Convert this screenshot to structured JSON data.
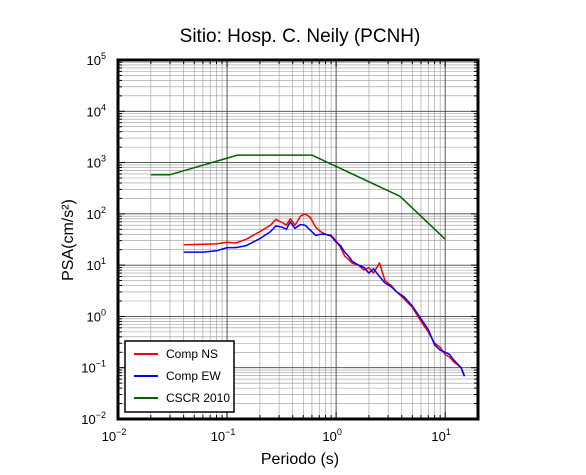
{
  "chart_data": {
    "type": "line",
    "title": "Sitio: Hosp. C. Neily (PCNH)",
    "xlabel": "Periodo (s)",
    "ylabel": "PSA(cm/s²)",
    "x_scale": "log",
    "y_scale": "log",
    "xlim": [
      0.01,
      20
    ],
    "ylim": [
      0.01,
      100000
    ],
    "grid": true,
    "legend_position": "bottom-left",
    "x_ticks": [
      {
        "base": "10",
        "exp": "−2",
        "value": 0.01
      },
      {
        "base": "10",
        "exp": "−1",
        "value": 0.1
      },
      {
        "base": "10",
        "exp": "0",
        "value": 1
      },
      {
        "base": "10",
        "exp": "1",
        "value": 10
      }
    ],
    "y_ticks": [
      {
        "base": "10",
        "exp": "−2",
        "value": 0.01
      },
      {
        "base": "10",
        "exp": "−1",
        "value": 0.1
      },
      {
        "base": "10",
        "exp": "0",
        "value": 1
      },
      {
        "base": "10",
        "exp": "1",
        "value": 10
      },
      {
        "base": "10",
        "exp": "2",
        "value": 100
      },
      {
        "base": "10",
        "exp": "3",
        "value": 1000
      },
      {
        "base": "10",
        "exp": "4",
        "value": 10000
      },
      {
        "base": "10",
        "exp": "5",
        "value": 100000
      }
    ],
    "series": [
      {
        "name": "Comp NS",
        "color": "#ff0000",
        "points": [
          [
            0.04,
            25
          ],
          [
            0.06,
            25.5
          ],
          [
            0.08,
            26
          ],
          [
            0.1,
            28
          ],
          [
            0.12,
            27
          ],
          [
            0.15,
            32
          ],
          [
            0.2,
            45
          ],
          [
            0.25,
            60
          ],
          [
            0.28,
            78
          ],
          [
            0.32,
            68
          ],
          [
            0.35,
            60
          ],
          [
            0.38,
            80
          ],
          [
            0.42,
            60
          ],
          [
            0.47,
            90
          ],
          [
            0.52,
            100
          ],
          [
            0.58,
            85
          ],
          [
            0.65,
            55
          ],
          [
            0.72,
            45
          ],
          [
            0.8,
            40
          ],
          [
            0.9,
            38
          ],
          [
            1.0,
            30
          ],
          [
            1.1,
            22
          ],
          [
            1.2,
            15
          ],
          [
            1.3,
            13
          ],
          [
            1.4,
            11
          ],
          [
            1.6,
            10
          ],
          [
            1.8,
            8
          ],
          [
            2.0,
            9
          ],
          [
            2.2,
            7
          ],
          [
            2.5,
            11
          ],
          [
            2.8,
            5
          ],
          [
            3.2,
            4
          ],
          [
            3.6,
            3
          ],
          [
            4.2,
            2.2
          ],
          [
            5.0,
            1.5
          ],
          [
            6.0,
            0.8
          ],
          [
            7.0,
            0.5
          ],
          [
            8.0,
            0.3
          ],
          [
            9.0,
            0.25
          ],
          [
            10.0,
            0.18
          ],
          [
            11.0,
            0.16
          ],
          [
            12.0,
            0.13
          ],
          [
            14.0,
            0.1
          ],
          [
            15.0,
            0.07
          ]
        ]
      },
      {
        "name": "Comp EW",
        "color": "#0000ff",
        "points": [
          [
            0.04,
            18
          ],
          [
            0.06,
            18
          ],
          [
            0.08,
            19
          ],
          [
            0.1,
            22
          ],
          [
            0.12,
            22
          ],
          [
            0.15,
            24
          ],
          [
            0.2,
            33
          ],
          [
            0.25,
            45
          ],
          [
            0.28,
            58
          ],
          [
            0.32,
            55
          ],
          [
            0.35,
            50
          ],
          [
            0.38,
            70
          ],
          [
            0.42,
            52
          ],
          [
            0.47,
            62
          ],
          [
            0.52,
            60
          ],
          [
            0.58,
            48
          ],
          [
            0.65,
            38
          ],
          [
            0.72,
            40
          ],
          [
            0.8,
            40
          ],
          [
            0.9,
            37
          ],
          [
            1.0,
            28
          ],
          [
            1.1,
            24
          ],
          [
            1.2,
            18
          ],
          [
            1.3,
            15
          ],
          [
            1.4,
            12
          ],
          [
            1.6,
            10
          ],
          [
            1.8,
            9
          ],
          [
            2.0,
            7
          ],
          [
            2.2,
            8.5
          ],
          [
            2.5,
            6
          ],
          [
            2.8,
            4.5
          ],
          [
            3.2,
            3.8
          ],
          [
            3.6,
            3
          ],
          [
            4.2,
            2.4
          ],
          [
            5.0,
            1.6
          ],
          [
            6.0,
            0.9
          ],
          [
            7.0,
            0.55
          ],
          [
            8.0,
            0.28
          ],
          [
            9.0,
            0.22
          ],
          [
            10.0,
            0.2
          ],
          [
            11.0,
            0.18
          ],
          [
            12.0,
            0.14
          ],
          [
            14.0,
            0.1
          ],
          [
            15.0,
            0.068
          ]
        ]
      },
      {
        "name": "CSCR 2010",
        "color": "#006400",
        "points": [
          [
            0.02,
            580
          ],
          [
            0.03,
            580
          ],
          [
            0.125,
            1400
          ],
          [
            0.6,
            1400
          ],
          [
            3.85,
            220
          ],
          [
            10.0,
            32
          ]
        ]
      }
    ]
  }
}
